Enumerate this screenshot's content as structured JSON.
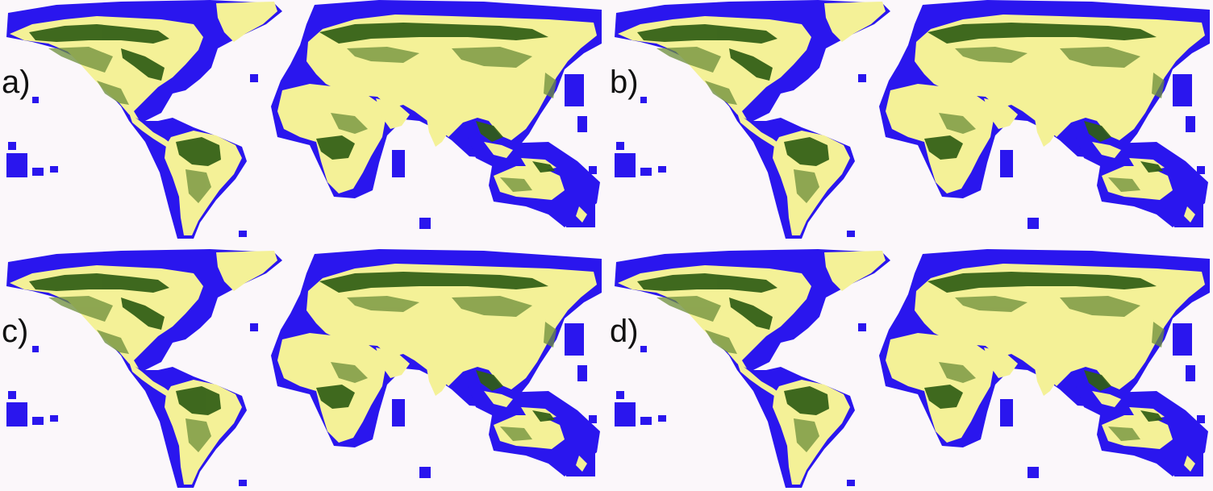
{
  "panels": [
    {
      "label": "a)"
    },
    {
      "label": "b)"
    },
    {
      "label": "c)"
    },
    {
      "label": "d)"
    }
  ],
  "colors": {
    "background": "#fbf7fa",
    "ocean_mask": "#2a16ee",
    "land_sparse": "#f4f197",
    "land_dense": "#2f5d14",
    "land_mid": "#6c8e3a"
  },
  "legend": []
}
